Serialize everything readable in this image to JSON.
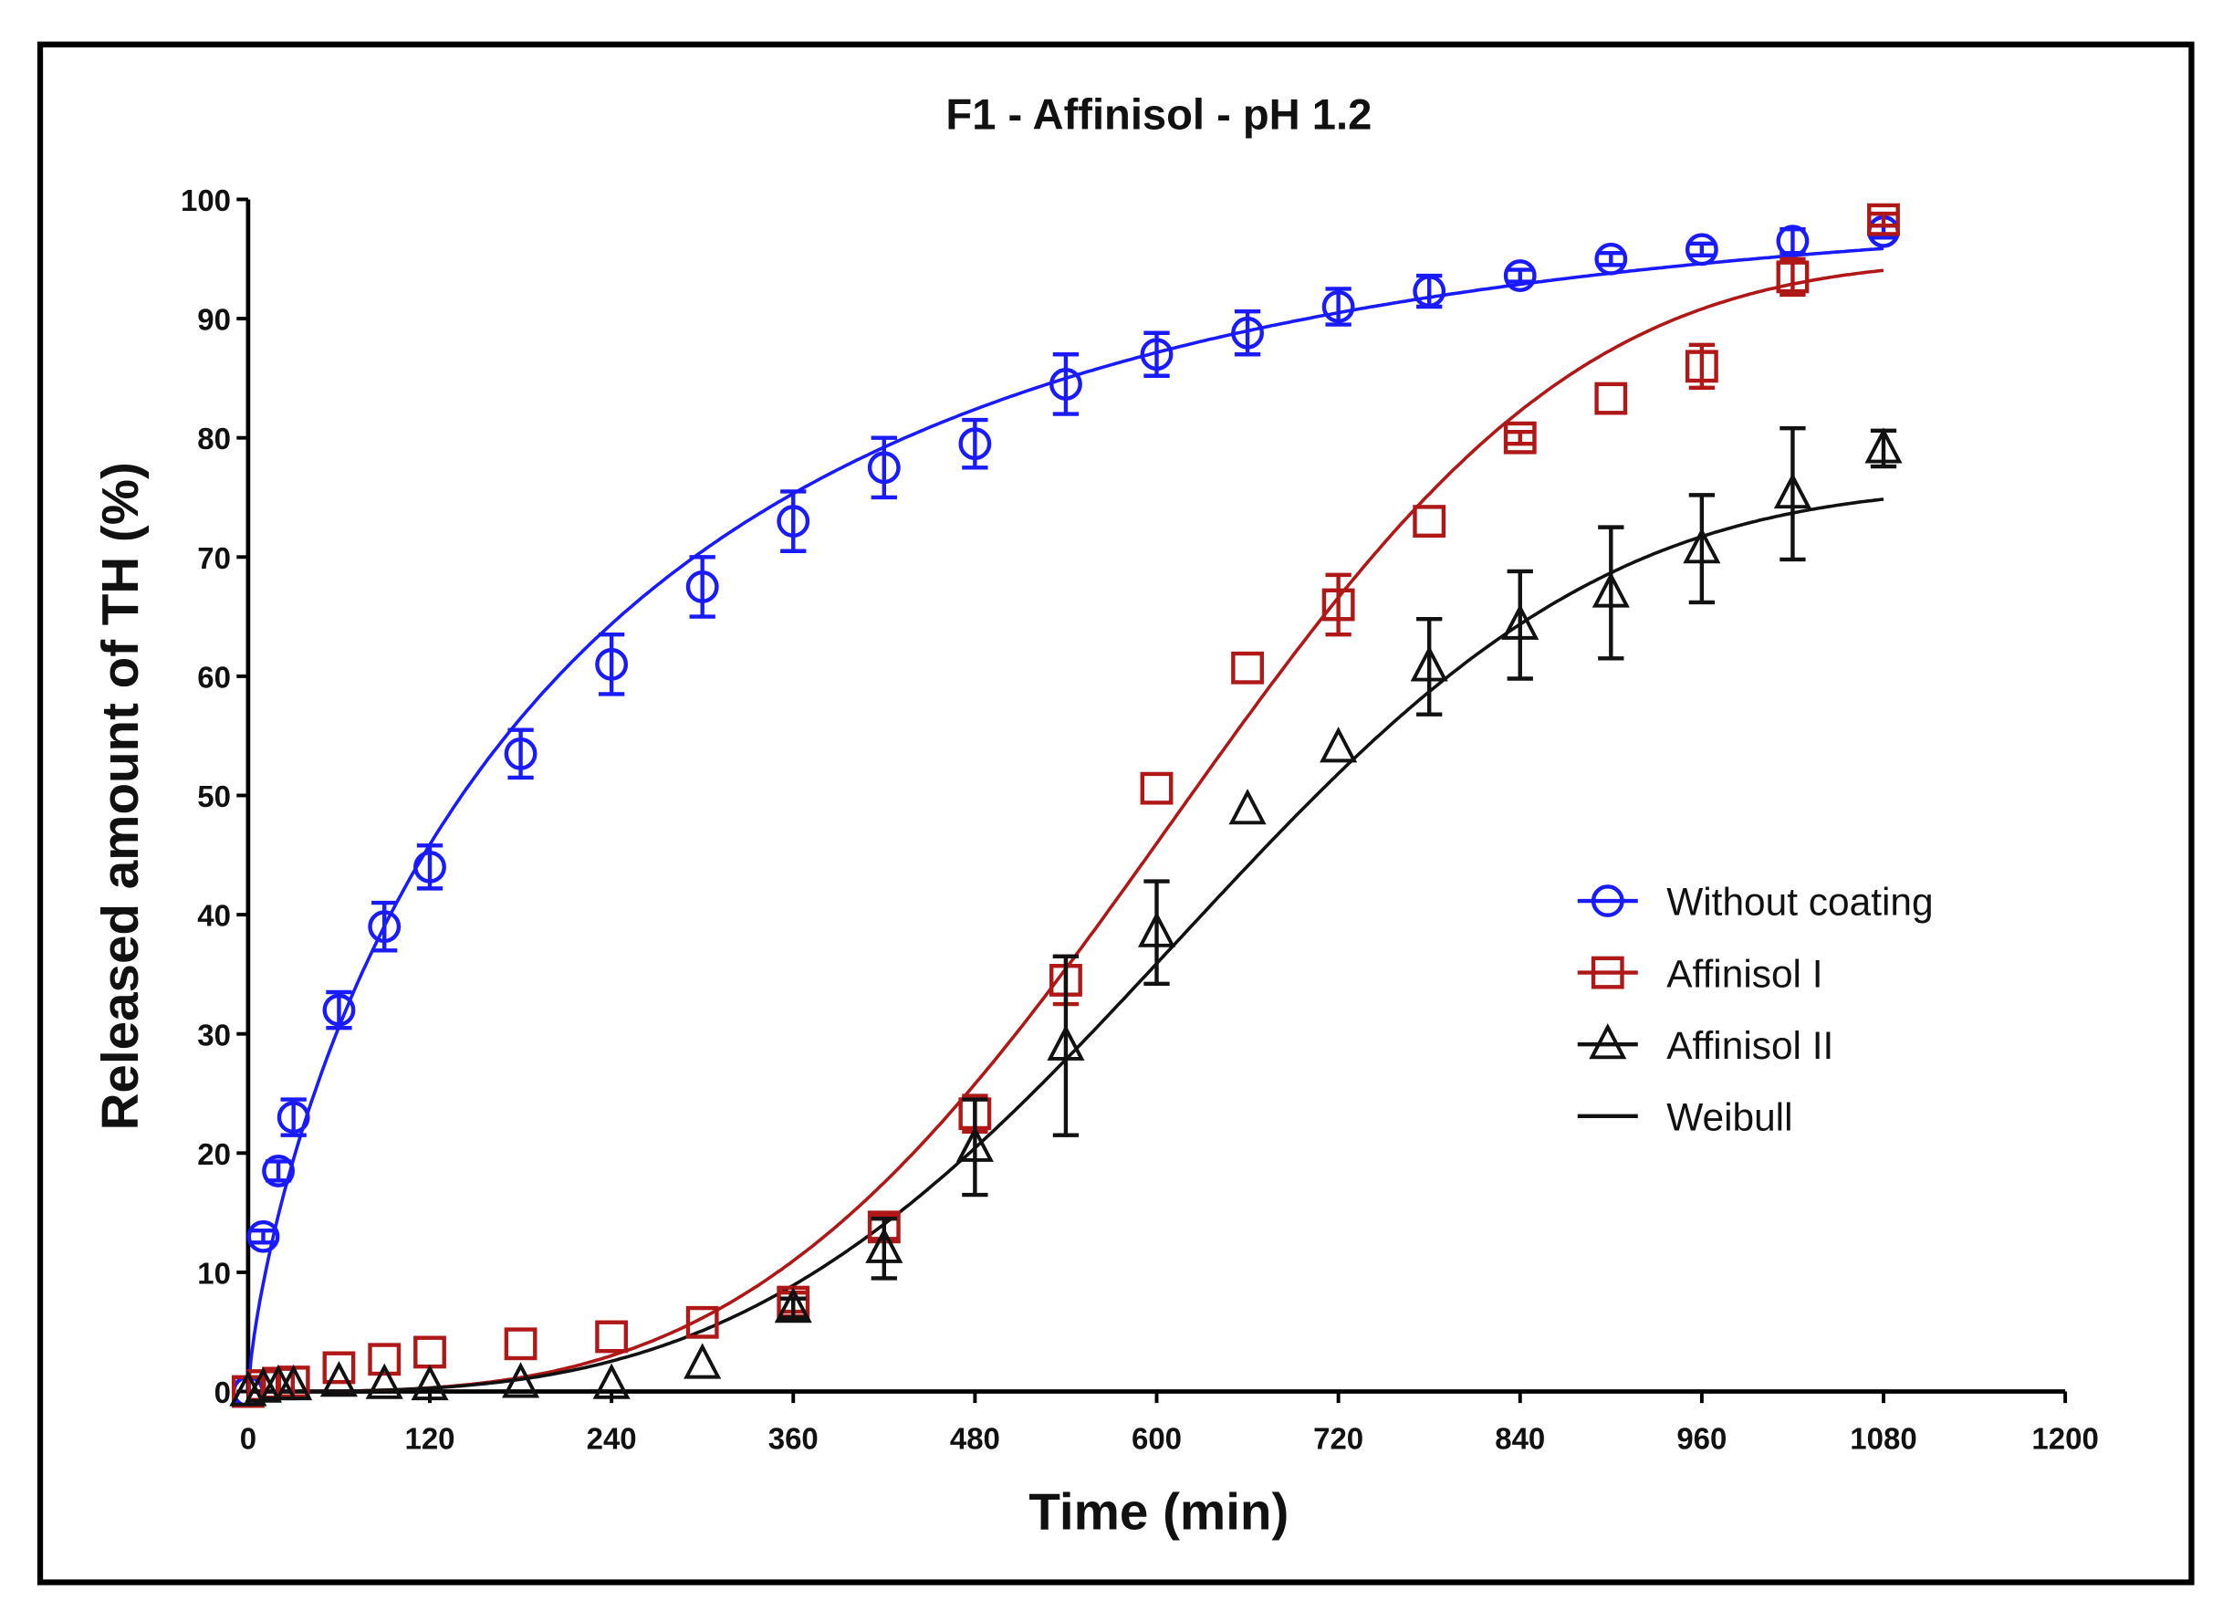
{
  "chart_data": {
    "type": "scatter",
    "title": "F1 - Affinisol -  pH 1.2",
    "xlabel": "Time (min)",
    "ylabel": "Released amount of TH (%)",
    "xlim": [
      0,
      1200
    ],
    "ylim": [
      0,
      100
    ],
    "xticks": [
      0,
      120,
      240,
      360,
      480,
      600,
      720,
      840,
      960,
      1080,
      1200
    ],
    "yticks": [
      0,
      10,
      20,
      30,
      40,
      50,
      60,
      70,
      80,
      90,
      100
    ],
    "grid": false,
    "legend_position": "center-right",
    "x": [
      0,
      10,
      20,
      30,
      60,
      90,
      120,
      180,
      240,
      300,
      360,
      420,
      480,
      540,
      600,
      660,
      720,
      780,
      840,
      900,
      960,
      1020,
      1080
    ],
    "series": [
      {
        "name": "Without coating",
        "color": "#1a1aff",
        "marker": "circle",
        "values": [
          0,
          13,
          18.5,
          23,
          32,
          39,
          44,
          53.5,
          61,
          67.5,
          73,
          77.5,
          79.5,
          84.5,
          87,
          88.8,
          91,
          92.3,
          93.6,
          95,
          95.8,
          96.5,
          97.3
        ],
        "errors": [
          0,
          0.5,
          0.8,
          1.5,
          1.5,
          2,
          1.8,
          2,
          2.5,
          2.5,
          2.5,
          2.5,
          2,
          2.5,
          1.8,
          1.8,
          1.5,
          1.3,
          0.5,
          0.5,
          0.5,
          1,
          0.5
        ],
        "fit": {
          "model": "Weibull",
          "Fmax": 100,
          "scale": 230,
          "shape": 0.75
        }
      },
      {
        "name": "Affinisol I",
        "color": "#b01818",
        "marker": "square",
        "values": [
          0,
          0.5,
          0.7,
          0.8,
          2,
          2.7,
          3.3,
          4,
          4.6,
          5.8,
          7.5,
          13.8,
          23.3,
          34.5,
          50.6,
          60.7,
          66,
          73,
          80,
          83.3,
          86,
          93.5,
          98.3
        ],
        "errors": [
          0,
          0,
          0,
          0,
          0,
          0,
          0,
          0,
          0,
          0,
          0.8,
          1,
          1.5,
          2,
          0,
          0,
          2.5,
          0,
          0.5,
          0,
          1.8,
          1.5,
          0.5
        ],
        "fit": {
          "model": "Weibull",
          "Fmax": 95,
          "scale": 680,
          "shape": 3.3
        }
      },
      {
        "name": "Affinisol II",
        "color": "#111111",
        "marker": "triangle",
        "values": [
          0,
          0.3,
          0.5,
          0.5,
          0.8,
          0.6,
          0.5,
          0.7,
          0.6,
          2.3,
          7,
          12,
          20.5,
          29,
          38.5,
          48.8,
          54,
          60.8,
          64.3,
          67,
          70.7,
          75.3,
          79.1
        ],
        "errors": [
          0,
          0,
          0,
          0,
          0,
          0,
          0,
          0,
          0,
          0,
          0.8,
          2.5,
          4,
          7.5,
          4.3,
          0,
          0,
          4,
          4.5,
          5.5,
          4.5,
          5.5,
          1.5
        ],
        "fit": {
          "model": "Weibull",
          "Fmax": 76,
          "scale": 690,
          "shape": 3.2
        }
      }
    ],
    "legend": [
      "Without coating",
      "Affinisol I",
      "Affinisol II",
      "Weibull"
    ]
  }
}
